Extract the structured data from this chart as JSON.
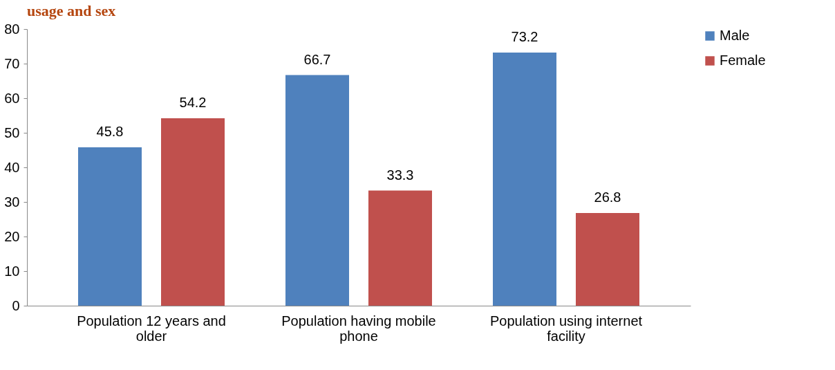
{
  "chart_data": {
    "type": "bar",
    "title": "usage and sex",
    "categories": [
      "Population 12 years and older",
      "Population having  mobile phone",
      "Population using internet facility"
    ],
    "series": [
      {
        "name": "Male",
        "color": "#4f81bd",
        "values": [
          45.8,
          66.7,
          73.2
        ]
      },
      {
        "name": "Female",
        "color": "#c0504d",
        "values": [
          54.2,
          33.3,
          26.8
        ]
      }
    ],
    "ylim": [
      0,
      80
    ],
    "yticks": [
      0,
      10,
      20,
      30,
      40,
      50,
      60,
      70,
      80
    ],
    "grid": false,
    "legend": "right",
    "data_labels": true
  }
}
